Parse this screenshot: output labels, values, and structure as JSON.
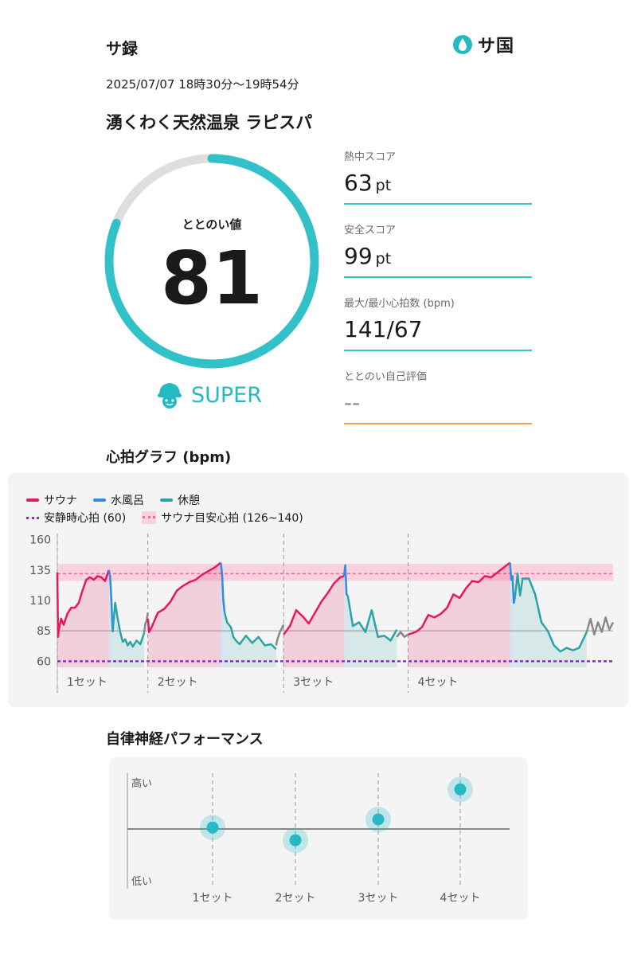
{
  "header": {
    "title": "サ録",
    "logo_text": "サ国",
    "datetime": "2025/07/07 18時30分〜19時54分",
    "facility": "湧くわく天然温泉 ラピスパ"
  },
  "totonoi": {
    "label": "ととのい値",
    "value": "81",
    "progress": 0.81,
    "rank": "SUPER"
  },
  "metrics": [
    {
      "label": "熱中スコア",
      "value": "63",
      "unit": "pt"
    },
    {
      "label": "安全スコア",
      "value": "99",
      "unit": "pt"
    },
    {
      "label": "最大/最小心拍数 (bpm)",
      "value": "141/67",
      "unit": ""
    },
    {
      "label": "ととのい自己評価",
      "value": "--",
      "unit": ""
    }
  ],
  "heart_section": {
    "title": "心拍グラフ (bpm)",
    "legend": {
      "sauna": "サウナ",
      "water": "水風呂",
      "rest": "休憩",
      "resting": "安静時心拍 (60)",
      "target": "サウナ目安心拍 (126~140)"
    }
  },
  "autonomic_section": {
    "title": "自律神経パフォーマンス",
    "high_label": "高い",
    "low_label": "低い"
  },
  "colors": {
    "accent": "#25b9c3",
    "sauna": "#e8175d",
    "water": "#2f8be6",
    "rest": "#2aa3a8",
    "resting": "#8a2be2",
    "target": "#f06b8e",
    "untracked": "#888888"
  },
  "chart_data": [
    {
      "type": "line",
      "ylim": [
        55,
        165
      ],
      "yticks": [
        60,
        85,
        110,
        135,
        160
      ],
      "x_categories": [
        "1セット",
        "2セット",
        "3セット",
        "4セット"
      ],
      "reference_lines": [
        {
          "name": "安静時心拍 (60)",
          "y": 60
        },
        {
          "name": "サウナ目安心拍 (126~140)",
          "band": [
            126,
            140
          ],
          "y": 132
        }
      ],
      "series": [
        {
          "name": "サウナ",
          "x": [
            0,
            0.6,
            1,
            3,
            5,
            8,
            11,
            14,
            17,
            20,
            23,
            26,
            29,
            32,
            35,
            38,
            41
          ],
          "values": [
            133,
            80,
            85,
            95,
            90,
            99,
            104,
            104,
            108,
            118,
            127,
            129,
            127,
            130,
            129,
            126,
            135
          ]
        },
        {
          "name": "水風呂",
          "x": [
            41,
            42,
            43,
            44
          ],
          "values": [
            135,
            130,
            110,
            84
          ]
        },
        {
          "name": "休憩",
          "x": [
            44,
            46,
            48,
            50,
            52,
            54,
            56,
            58,
            60,
            63,
            66,
            69
          ],
          "values": [
            84,
            108,
            95,
            84,
            76,
            78,
            73,
            76,
            72,
            77,
            74,
            83
          ]
        },
        {
          "name": "",
          "x": [
            69,
            70,
            71,
            72
          ],
          "values": [
            83,
            91,
            93,
            100
          ]
        },
        {
          "name": "サウナ",
          "x": [
            72,
            73,
            75,
            80,
            85,
            90,
            95,
            100,
            105,
            110,
            115,
            120,
            125,
            130
          ],
          "values": [
            95,
            84,
            88,
            100,
            103,
            109,
            118,
            122,
            125,
            127,
            131,
            134,
            137,
            141
          ]
        },
        {
          "name": "水風呂",
          "x": [
            130,
            131,
            132,
            133
          ],
          "values": [
            141,
            132,
            110,
            100
          ]
        },
        {
          "name": "休憩",
          "x": [
            133,
            135,
            138,
            140,
            142,
            145,
            150,
            155,
            160,
            165,
            170,
            174
          ],
          "values": [
            100,
            92,
            88,
            80,
            77,
            74,
            81,
            75,
            80,
            73,
            74,
            70
          ]
        },
        {
          "name": "",
          "x": [
            174,
            175,
            177,
            180
          ],
          "values": [
            73,
            78,
            84,
            90
          ]
        },
        {
          "name": "サウナ",
          "x": [
            180,
            185,
            190,
            195,
            200,
            205,
            210,
            215,
            220,
            225,
            228
          ],
          "values": [
            82,
            89,
            102,
            97,
            91,
            100,
            109,
            116,
            124,
            129,
            130
          ]
        },
        {
          "name": "水風呂",
          "x": [
            228,
            229,
            230,
            231
          ],
          "values": [
            130,
            139,
            115,
            114
          ]
        },
        {
          "name": "休憩",
          "x": [
            231,
            235,
            240,
            245,
            250,
            255,
            260,
            265,
            270
          ],
          "values": [
            114,
            89,
            92,
            84,
            102,
            80,
            81,
            77,
            86
          ]
        },
        {
          "name": "",
          "x": [
            270,
            273,
            276,
            279
          ],
          "values": [
            80,
            84,
            80,
            82
          ]
        },
        {
          "name": "サウナ",
          "x": [
            279,
            285,
            290,
            295,
            300,
            305,
            310,
            315,
            320,
            325,
            330,
            335,
            340,
            345,
            350,
            355,
            360
          ],
          "values": [
            82,
            84,
            88,
            98,
            96,
            99,
            104,
            115,
            112,
            120,
            126,
            125,
            130,
            129,
            133,
            137,
            141
          ]
        },
        {
          "name": "水風呂",
          "x": [
            360,
            361,
            362,
            363,
            364
          ],
          "values": [
            141,
            127,
            130,
            108,
            113
          ]
        },
        {
          "name": "休憩",
          "x": [
            364,
            366,
            368,
            370,
            375,
            380,
            385,
            390,
            395,
            400,
            405,
            410,
            415,
            421
          ],
          "values": [
            113,
            132,
            114,
            128,
            128,
            115,
            92,
            85,
            73,
            68,
            71,
            69,
            71,
            84
          ]
        },
        {
          "name": "",
          "x": [
            421,
            424,
            427,
            430,
            433,
            436,
            439,
            442
          ],
          "values": [
            84,
            95,
            82,
            92,
            84,
            96,
            86,
            92
          ]
        }
      ]
    },
    {
      "type": "scatter",
      "categories": [
        "1セット",
        "2セット",
        "3セット",
        "4セット"
      ],
      "values": [
        0.53,
        0.42,
        0.6,
        0.86
      ],
      "ylabel_high": "高い",
      "ylabel_low": "低い"
    }
  ]
}
